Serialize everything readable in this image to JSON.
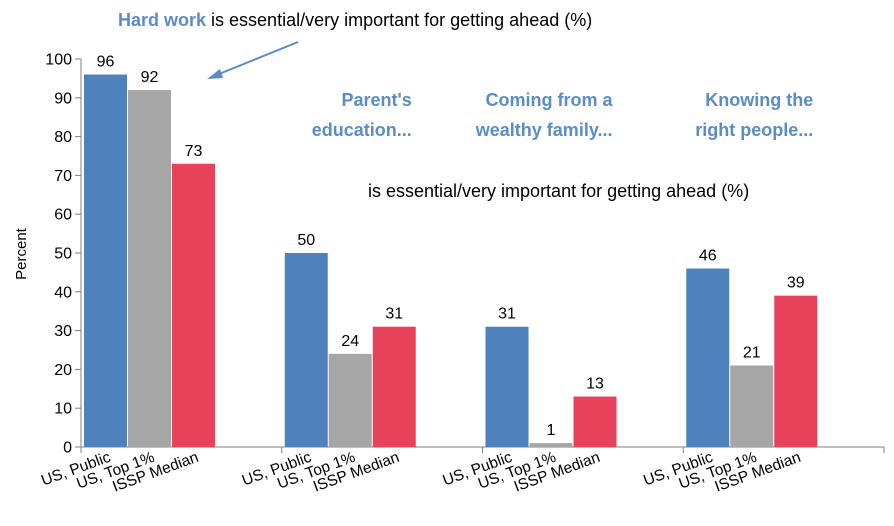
{
  "chart_data": {
    "type": "bar",
    "ylabel": "Percent",
    "ylim": [
      0,
      100
    ],
    "yticks": [
      0,
      10,
      20,
      30,
      40,
      50,
      60,
      70,
      80,
      90,
      100
    ],
    "grid": false,
    "groups": [
      {
        "annotation": [
          "Hard work"
        ],
        "values": [
          96,
          92,
          73
        ]
      },
      {
        "annotation": [
          "Parent's",
          "education..."
        ],
        "values": [
          50,
          24,
          31
        ]
      },
      {
        "annotation": [
          "Coming from a",
          "wealthy family..."
        ],
        "values": [
          31,
          1,
          13
        ]
      },
      {
        "annotation": [
          "Knowing the",
          "right people..."
        ],
        "values": [
          46,
          21,
          39
        ]
      }
    ],
    "series": [
      {
        "name": "US, Public",
        "color": "#4f81bd"
      },
      {
        "name": "US, Top 1%",
        "color": "#a6a6a6"
      },
      {
        "name": "ISSP Median",
        "color": "#e8425a"
      }
    ],
    "annotations": {
      "top_bold": "Hard work",
      "top_rest": " is essential/very important for getting ahead (%)",
      "middle": "is essential/very important for getting ahead (%)"
    }
  }
}
